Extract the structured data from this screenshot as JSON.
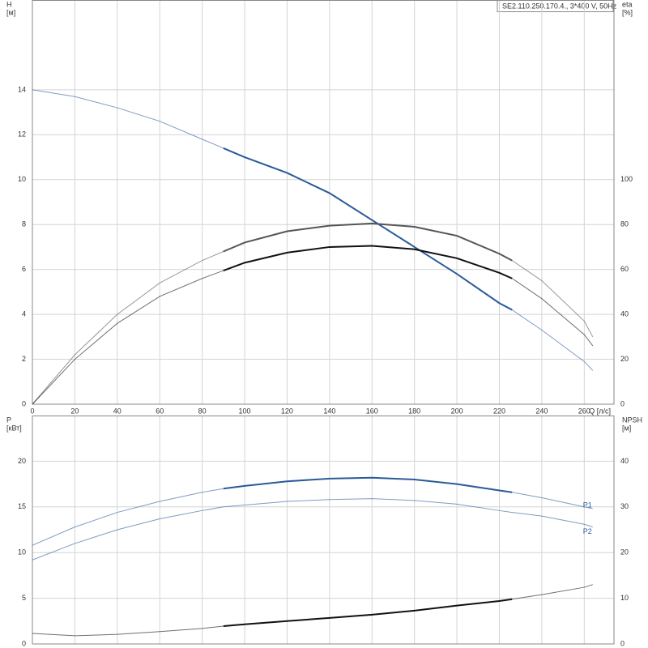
{
  "chart_data": [
    {
      "type": "line",
      "title": "SE2.110.250.170.4., 3*400 V, 50Hz",
      "x_label": "Q [л/с]",
      "y_label": "H",
      "y_unit": "[м]",
      "y2_label": "eta",
      "y2_unit": "[%]",
      "x": [
        0,
        20,
        40,
        60,
        80,
        90,
        100,
        120,
        140,
        160,
        180,
        200,
        220,
        226,
        240,
        260,
        264
      ],
      "xlim": [
        0,
        274
      ],
      "xticks": [
        0,
        20,
        40,
        60,
        80,
        100,
        120,
        140,
        160,
        180,
        200,
        220,
        240,
        260
      ],
      "ylim": [
        0,
        18
      ],
      "yticks": [
        0,
        2,
        4,
        6,
        8,
        10,
        12,
        14
      ],
      "y2lim": [
        0,
        180
      ],
      "y2ticks": [
        0,
        20,
        40,
        60,
        80,
        100
      ],
      "grid": true,
      "highlight_range": [
        90,
        226
      ],
      "series": [
        {
          "color": "#2a5a9a",
          "highlight": true,
          "values": [
            14.0,
            13.7,
            13.2,
            12.6,
            11.8,
            11.4,
            11.0,
            10.3,
            9.4,
            8.2,
            7.0,
            5.8,
            4.5,
            4.2,
            3.3,
            1.9,
            1.5
          ]
        },
        {
          "color": "#555555",
          "highlight": true,
          "axis": "y2",
          "values": [
            0,
            22,
            40,
            54,
            64,
            68,
            72,
            77,
            79.5,
            80.5,
            79,
            75,
            67,
            64,
            55,
            37,
            30
          ]
        },
        {
          "color": "#111111",
          "highlight": true,
          "axis": "y2",
          "values": [
            0,
            20,
            36,
            48,
            56,
            59.5,
            63,
            67.5,
            70,
            70.5,
            69,
            65,
            58.5,
            56,
            47,
            31,
            26
          ]
        }
      ]
    },
    {
      "type": "line",
      "y_label": "P",
      "y_unit": "[кВт]",
      "y2_label": "NPSH",
      "y2_unit": "[м]",
      "x": [
        0,
        20,
        40,
        60,
        80,
        90,
        100,
        120,
        140,
        160,
        180,
        200,
        220,
        226,
        240,
        260,
        264
      ],
      "xlim": [
        0,
        274
      ],
      "ylim": [
        0,
        25
      ],
      "yticks": [
        0,
        5,
        10,
        15,
        20
      ],
      "y2lim": [
        0,
        50
      ],
      "y2ticks": [
        0,
        10,
        20,
        30,
        40
      ],
      "grid": true,
      "highlight_range": [
        90,
        226
      ],
      "series": [
        {
          "name": "P1",
          "color": "#2a5a9a",
          "highlight": true,
          "values": [
            10.8,
            12.8,
            14.4,
            15.6,
            16.6,
            17.0,
            17.3,
            17.8,
            18.1,
            18.2,
            18.0,
            17.5,
            16.8,
            16.6,
            16.0,
            15.0,
            14.8
          ]
        },
        {
          "name": "P2",
          "color": "#2a5a9a",
          "highlight": false,
          "values": [
            9.2,
            11.0,
            12.5,
            13.7,
            14.6,
            15.0,
            15.2,
            15.6,
            15.8,
            15.9,
            15.7,
            15.3,
            14.6,
            14.4,
            14.0,
            13.1,
            12.8
          ]
        },
        {
          "color": "#111111",
          "highlight": true,
          "axis": "y2",
          "values": [
            2.3,
            1.8,
            2.1,
            2.7,
            3.4,
            3.9,
            4.3,
            5.0,
            5.7,
            6.4,
            7.3,
            8.4,
            9.4,
            9.8,
            10.8,
            12.4,
            13.0
          ]
        }
      ]
    }
  ]
}
